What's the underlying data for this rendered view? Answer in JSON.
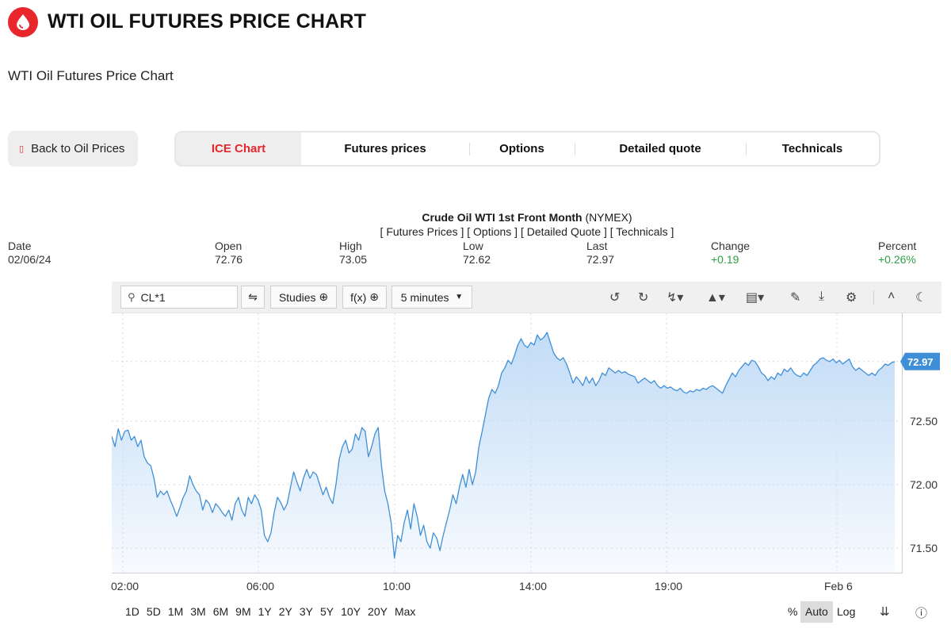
{
  "header": {
    "title": "WTI OIL FUTURES PRICE CHART",
    "subtitle": "WTI Oil Futures Price Chart",
    "logo_icon": "oil-drop-icon",
    "brand_color": "#e8262c"
  },
  "nav": {
    "back_label": "Back to Oil Prices",
    "back_icon": "back-icon",
    "tabs": [
      {
        "label": "ICE Chart",
        "active": true
      },
      {
        "label": "Futures prices",
        "active": false
      },
      {
        "label": "Options",
        "active": false
      },
      {
        "label": "Detailed quote",
        "active": false
      },
      {
        "label": "Technicals",
        "active": false
      }
    ]
  },
  "quote": {
    "name": "Crude Oil WTI 1st Front Month",
    "exchange": "(NYMEX)",
    "links": "[ Futures Prices ] [ Options ] [ Detailed Quote ] [ Technicals ]",
    "fields": {
      "date": {
        "label": "Date",
        "value": "02/06/24"
      },
      "open": {
        "label": "Open",
        "value": "72.76"
      },
      "high": {
        "label": "High",
        "value": "73.05"
      },
      "low": {
        "label": "Low",
        "value": "72.62"
      },
      "last": {
        "label": "Last",
        "value": "72.97"
      },
      "change": {
        "label": "Change",
        "value": "+0.19"
      },
      "percent": {
        "label": "Percent",
        "value": "+0.26%"
      }
    },
    "positive_color": "#2e9e44"
  },
  "toolbar": {
    "symbol": "CL*1",
    "studies_label": "Studies",
    "fx_label": "f(x)",
    "interval_label": "5 minutes",
    "icons": [
      "search-icon",
      "compare-icon",
      "plus-circle-icon",
      "chevron-down-icon",
      "undo-icon",
      "redo-icon",
      "lightning-icon",
      "chart-type-icon",
      "layout-icon",
      "pencil-icon",
      "download-icon",
      "gear-icon",
      "collapse-icon",
      "moon-icon"
    ]
  },
  "footer": {
    "ranges": [
      "1D",
      "5D",
      "1M",
      "3M",
      "6M",
      "9M",
      "1Y",
      "2Y",
      "3Y",
      "5Y",
      "10Y",
      "20Y",
      "Max"
    ],
    "percent_label": "%",
    "auto_label": "Auto",
    "log_label": "Log",
    "auto_selected": true
  },
  "chart_data": {
    "type": "area",
    "title": "",
    "xlabel": "",
    "ylabel": "",
    "ylim": [
      71.3,
      73.35
    ],
    "x_ticks": [
      "02:00",
      "06:00",
      "10:00",
      "14:00",
      "19:00",
      "Feb 6"
    ],
    "y_ticks": [
      71.5,
      72.0,
      72.5
    ],
    "last_value_label": "72.97",
    "grid": true,
    "line_color": "#3e8fd8",
    "fill_top_color": "#bfdaf6",
    "series": [
      {
        "name": "CL*1",
        "values": [
          72.38,
          72.3,
          72.44,
          72.35,
          72.42,
          72.43,
          72.35,
          72.38,
          72.3,
          72.35,
          72.22,
          72.17,
          72.15,
          72.05,
          71.9,
          71.95,
          71.92,
          71.95,
          71.88,
          71.82,
          71.75,
          71.82,
          71.9,
          71.95,
          72.07,
          72.0,
          71.95,
          71.92,
          71.8,
          71.88,
          71.85,
          71.78,
          71.85,
          71.82,
          71.78,
          71.75,
          71.8,
          71.72,
          71.85,
          71.9,
          71.8,
          71.75,
          71.9,
          71.85,
          71.92,
          71.88,
          71.8,
          71.6,
          71.55,
          71.62,
          71.78,
          71.9,
          71.86,
          71.8,
          71.85,
          71.98,
          72.1,
          72.02,
          71.95,
          72.05,
          72.12,
          72.05,
          72.1,
          72.08,
          72.0,
          71.92,
          71.98,
          71.9,
          71.85,
          72.0,
          72.2,
          72.3,
          72.35,
          72.25,
          72.28,
          72.4,
          72.35,
          72.45,
          72.42,
          72.22,
          72.3,
          72.4,
          72.45,
          72.15,
          71.95,
          71.85,
          71.7,
          71.42,
          71.6,
          71.55,
          71.7,
          71.8,
          71.65,
          71.85,
          71.75,
          71.6,
          71.68,
          71.55,
          71.5,
          71.62,
          71.58,
          71.48,
          71.6,
          71.7,
          71.8,
          71.92,
          71.85,
          71.98,
          72.08,
          71.98,
          72.12,
          72.0,
          72.1,
          72.3,
          72.42,
          72.55,
          72.68,
          72.75,
          72.72,
          72.78,
          72.88,
          72.92,
          72.98,
          72.95,
          73.02,
          73.1,
          73.15,
          73.1,
          73.08,
          73.12,
          73.1,
          73.18,
          73.14,
          73.16,
          73.2,
          73.12,
          73.04,
          73.0,
          72.98,
          73.0,
          72.95,
          72.88,
          72.8,
          72.85,
          72.82,
          72.78,
          72.85,
          72.8,
          72.84,
          72.78,
          72.82,
          72.88,
          72.86,
          72.92,
          72.9,
          72.88,
          72.9,
          72.88,
          72.89,
          72.87,
          72.86,
          72.85,
          72.8,
          72.82,
          72.84,
          72.82,
          72.8,
          72.82,
          72.78,
          72.76,
          72.78,
          72.76,
          72.77,
          72.75,
          72.74,
          72.76,
          72.73,
          72.72,
          72.74,
          72.73,
          72.75,
          72.74,
          72.76,
          72.75,
          72.77,
          72.78,
          72.76,
          72.74,
          72.72,
          72.78,
          72.83,
          72.88,
          72.85,
          72.9,
          72.93,
          72.96,
          72.94,
          72.98,
          72.97,
          72.93,
          72.88,
          72.86,
          72.82,
          72.85,
          72.83,
          72.88,
          72.86,
          72.91,
          72.89,
          72.92,
          72.88,
          72.86,
          72.85,
          72.88,
          72.86,
          72.9,
          72.94,
          72.96,
          72.99,
          73.0,
          72.98,
          72.97,
          72.99,
          72.96,
          72.98,
          72.95,
          72.97,
          72.99,
          72.93,
          72.9,
          72.92,
          72.9,
          72.88,
          72.86,
          72.88,
          72.86,
          72.9,
          72.92,
          72.95,
          72.94,
          72.96,
          72.97
        ]
      }
    ]
  }
}
